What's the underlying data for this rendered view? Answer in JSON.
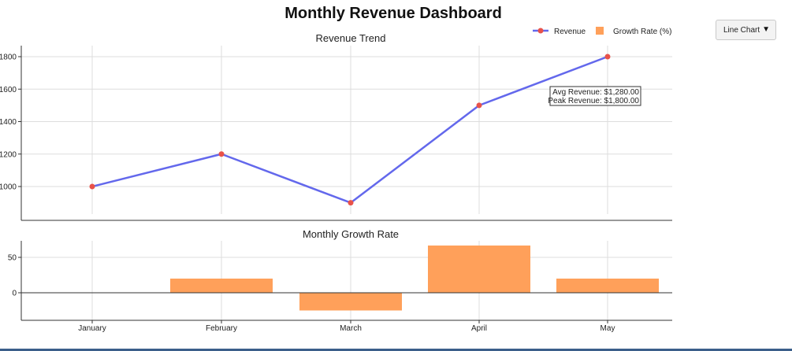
{
  "title": "Monthly Revenue Dashboard",
  "dropdown": {
    "selected": "Line Chart"
  },
  "legend": {
    "revenue": "Revenue",
    "growth": "Growth Rate (%)"
  },
  "colors": {
    "revenue_line": "#6368ec",
    "revenue_point": "#e8524a",
    "growth_bar": "#ffa05a",
    "grid": "#dddddd"
  },
  "annotation": {
    "avg": "Avg Revenue: $1,280.00",
    "peak": "Peak Revenue: $1,800.00"
  },
  "chart_data": [
    {
      "type": "line",
      "title": "Revenue Trend",
      "categories": [
        "January",
        "February",
        "March",
        "April",
        "May"
      ],
      "series": [
        {
          "name": "Revenue",
          "values": [
            1000,
            1200,
            900,
            1500,
            1800
          ]
        }
      ],
      "yticks": [
        1000,
        1200,
        1400,
        1600,
        1800
      ],
      "ylim": [
        880,
        1880
      ],
      "grid": true
    },
    {
      "type": "bar",
      "title": "Monthly Growth Rate",
      "categories": [
        "January",
        "February",
        "March",
        "April",
        "May"
      ],
      "series": [
        {
          "name": "Growth Rate (%)",
          "values": [
            0,
            20,
            -25,
            66.7,
            20
          ]
        }
      ],
      "yticks": [
        0,
        50
      ],
      "ylim": [
        -40,
        72
      ],
      "grid": true
    }
  ]
}
